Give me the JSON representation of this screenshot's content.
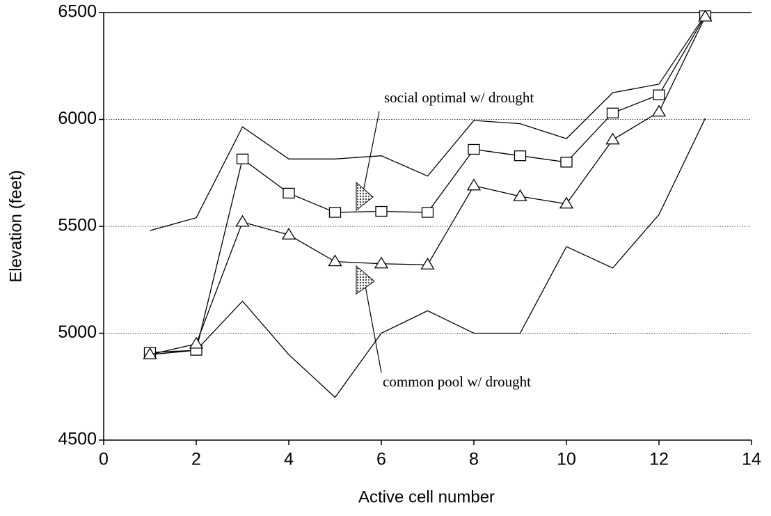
{
  "chart_data": {
    "type": "line",
    "x_label": "Active cell number",
    "y_label": "Elevation (feet)",
    "x": [
      1,
      2,
      3,
      4,
      5,
      6,
      7,
      8,
      9,
      10,
      11,
      12,
      13
    ],
    "series": [
      {
        "color": "#000000",
        "marker": "none",
        "values": [
          5480,
          5540,
          5965,
          5815,
          5815,
          5830,
          5735,
          5995,
          5980,
          5910,
          6125,
          6165,
          6490
        ]
      },
      {
        "color": "#000000",
        "marker": "none",
        "values": [
          4900,
          4920,
          5150,
          4900,
          4700,
          5000,
          5105,
          5000,
          5000,
          5405,
          5305,
          5555,
          6005
        ]
      },
      {
        "color": "#000000",
        "marker": "square",
        "values": [
          4910,
          4920,
          5815,
          5655,
          5565,
          5570,
          5565,
          5860,
          5830,
          5800,
          6030,
          6115,
          6485
        ]
      },
      {
        "color": "#000000",
        "marker": "triangle",
        "values": [
          4900,
          4950,
          5520,
          5460,
          5335,
          5325,
          5320,
          5690,
          5640,
          5605,
          5905,
          6035,
          6480
        ]
      }
    ],
    "annotations": [
      "social optimal w/ drought",
      "common pool w/ drought"
    ],
    "xlim": [
      0,
      14
    ],
    "xticks": [
      0,
      2,
      4,
      6,
      8,
      10,
      12,
      14
    ],
    "ylim": [
      4500,
      6500
    ],
    "yticks": [
      4500,
      5000,
      5500,
      6000,
      6500
    ],
    "grid": true
  }
}
